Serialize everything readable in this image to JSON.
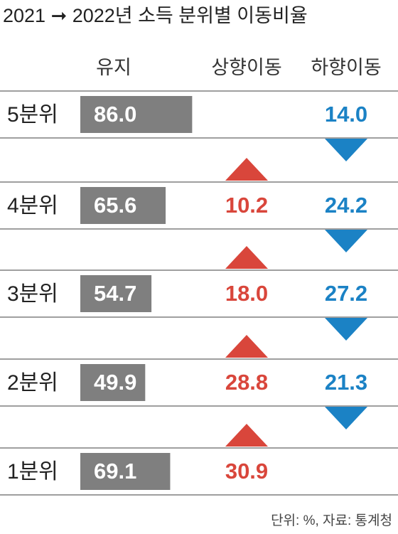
{
  "chart_data": {
    "type": "table-bar",
    "title": "2021 ➞ 2022년 소득 분위별 이동비율",
    "footnote": "단위: %, 자료: 통계청",
    "categories": [
      "5분위",
      "4분위",
      "3분위",
      "2분위",
      "1분위"
    ],
    "xlim": [
      0,
      100
    ],
    "series": [
      {
        "name": "유지",
        "color": "#7f7f7f",
        "values": [
          86.0,
          65.6,
          54.7,
          49.9,
          69.1
        ],
        "value_labels": [
          "86.0",
          "65.6",
          "54.7",
          "49.9",
          "69.1"
        ]
      },
      {
        "name": "상향이동",
        "color": "#d9463b",
        "values": [
          null,
          10.2,
          18.0,
          28.8,
          30.9
        ],
        "value_labels": [
          null,
          "10.2",
          "18.0",
          "28.8",
          "30.9"
        ]
      },
      {
        "name": "하향이동",
        "color": "#1b82c5",
        "values": [
          14.0,
          24.2,
          27.2,
          21.3,
          null
        ],
        "value_labels": [
          "14.0",
          "24.2",
          "27.2",
          "21.3",
          null
        ]
      }
    ]
  }
}
